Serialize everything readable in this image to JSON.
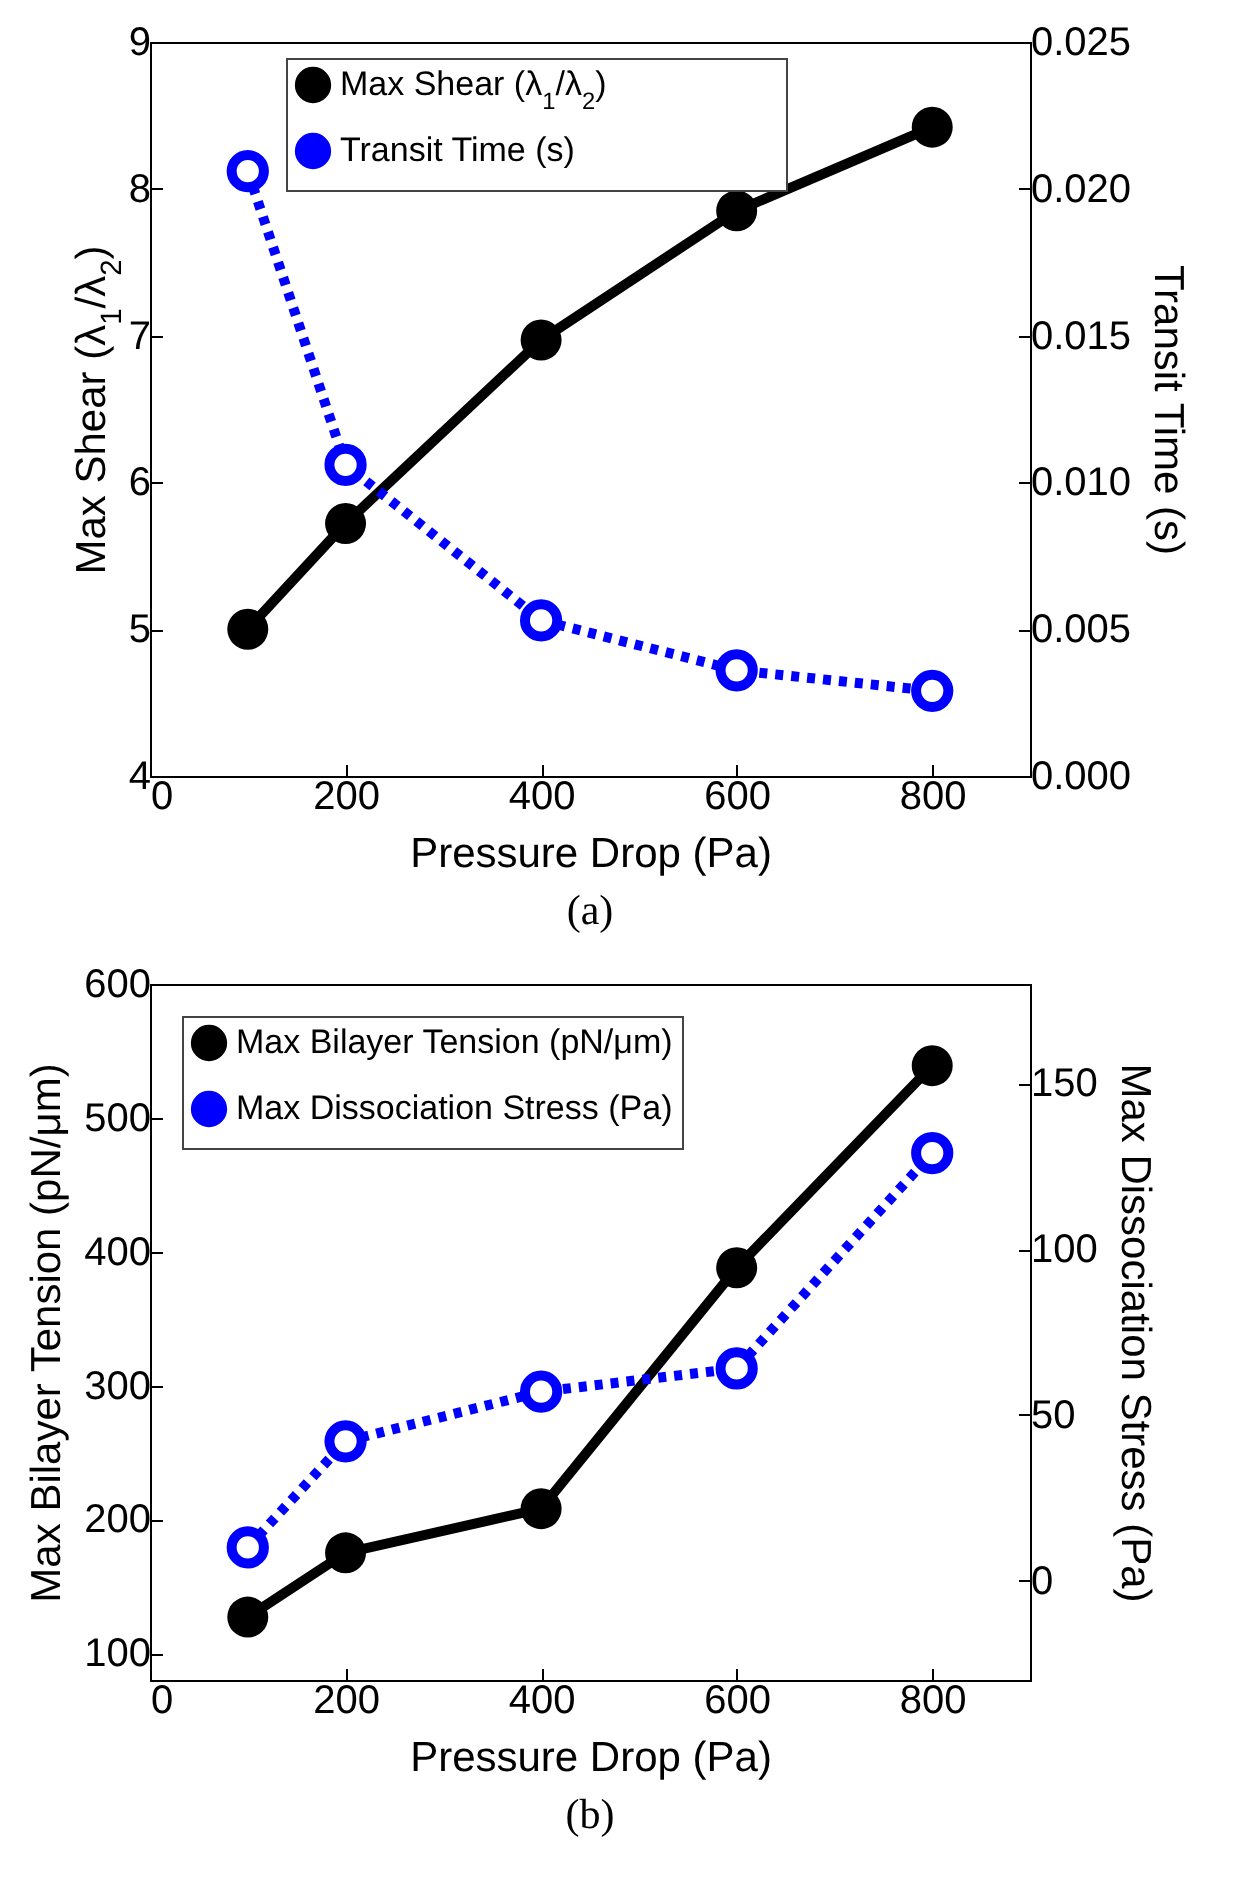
{
  "chart_data": [
    {
      "type": "line",
      "xlabel": "Pressure Drop (Pa)",
      "ylabel": "Max Shear (λ$_{1}$/λ$_{2}$)",
      "y2label": "Transit Time (s)",
      "annotations": [
        "(a)"
      ],
      "x": [
        100,
        200,
        400,
        600,
        800
      ],
      "xlim": [
        0,
        900
      ],
      "xticks": [
        0,
        200,
        400,
        600,
        800
      ],
      "ylim": [
        4,
        9
      ],
      "yticks": [
        4,
        5,
        6,
        7,
        8,
        9
      ],
      "y2lim": [
        0,
        0.025
      ],
      "y2ticks": [
        {
          "value": 0,
          "label": "0.000"
        },
        {
          "value": 0.005,
          "label": "0.005"
        },
        {
          "value": 0.01,
          "label": "0.010"
        },
        {
          "value": 0.015,
          "label": "0.015"
        },
        {
          "value": 0.02,
          "label": "0.020"
        },
        {
          "value": 0.025,
          "label": "0.025"
        }
      ],
      "grid": false,
      "legend": "top",
      "marker": "circle",
      "series": [
        {
          "name": "Max Shear (λ$_{1}$/λ$_{2}$)",
          "color": "#000000",
          "line_style": "solid",
          "values": [
            5.0,
            5.72,
            6.97,
            7.85,
            8.42
          ]
        },
        {
          "name": "Transit Time (s)",
          "color": "#0000ff",
          "line_style": "dotted",
          "axis": "y2",
          "values": [
            0.0206,
            0.0106,
            0.0053,
            0.0036,
            0.0029
          ]
        }
      ]
    },
    {
      "type": "line",
      "xlabel": "Pressure Drop (Pa)",
      "ylabel": "Max Bilayer Tension (pN/μm)",
      "y2label": "Max Dissociation Stress (Pa)",
      "annotations": [
        "(b)"
      ],
      "x": [
        100,
        200,
        400,
        600,
        800
      ],
      "xlim": [
        0,
        900
      ],
      "xticks": [
        0,
        200,
        400,
        600,
        800
      ],
      "ylim": [
        80,
        600
      ],
      "yticks": [
        100,
        200,
        300,
        400,
        500,
        600
      ],
      "y2lim": [
        -30,
        180
      ],
      "y2ticks": [
        0,
        50,
        100,
        150
      ],
      "grid": false,
      "legend": "top left",
      "marker": "circle",
      "series": [
        {
          "name": "Max Bilayer Tension (pN/μm)",
          "color": "#000000",
          "line_style": "solid",
          "values": [
            127,
            175,
            208,
            388,
            539
          ]
        },
        {
          "name": "Max Dissociation Stress (Pa)",
          "color": "#0000ff",
          "line_style": "dotted",
          "axis": "y2",
          "values": [
            10,
            42,
            57,
            64,
            129
          ]
        }
      ]
    }
  ]
}
